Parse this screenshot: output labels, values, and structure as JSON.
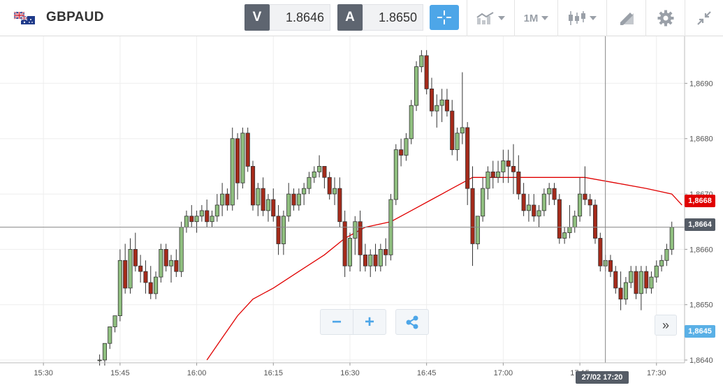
{
  "header": {
    "symbol": "GBPAUD",
    "flag_icon": "gb-au-flag-icon",
    "sell_label": "V",
    "sell_price": "1.8646",
    "buy_label": "A",
    "buy_price": "1.8650",
    "timeframe": "1M",
    "accent_color": "#4da6e8"
  },
  "toolbar_icons": [
    "crosshair-icon",
    "indicators-icon",
    "candlestick-type-icon",
    "drawing-tools-icon",
    "gear-icon",
    "compress-icon"
  ],
  "price_tags": {
    "ma_value": "1,8668",
    "ma_color": "#e00000",
    "crosshair_price": "1,8664",
    "bid_price": "1,8645",
    "bid_color": "#5ab0e6"
  },
  "crosshair_time": "27/02 17:20",
  "controls": {
    "zoom_out": "−",
    "zoom_in": "+",
    "scroll_right": "»"
  },
  "chart_data": {
    "type": "candlestick",
    "y_ticks": [
      "1,8640",
      "1,8650",
      "1,8660",
      "1,8670",
      "1,8680",
      "1,8690"
    ],
    "y_tick_values": [
      1.864,
      1.865,
      1.866,
      1.867,
      1.868,
      1.869
    ],
    "ylim": [
      1.86395,
      1.86985
    ],
    "x_ticks": [
      "15:30",
      "15:45",
      "16:00",
      "16:15",
      "16:30",
      "16:45",
      "17:00",
      "17:15",
      "17:30"
    ],
    "x_tick_minutes": [
      930,
      945,
      960,
      975,
      990,
      1005,
      1020,
      1035,
      1050
    ],
    "xlim_minutes": [
      921.5,
      1055.5
    ],
    "grid": true,
    "up_color": "#8fbf7f",
    "down_color": "#a52a1a",
    "candles": [
      [
        941,
        1.864,
        1.8641,
        1.8639,
        1.864
      ],
      [
        942,
        1.864,
        1.8643,
        1.8639,
        1.8643
      ],
      [
        943,
        1.8643,
        1.8646,
        1.8642,
        1.8646
      ],
      [
        944,
        1.8646,
        1.8648,
        1.8645,
        1.8648
      ],
      [
        945,
        1.8648,
        1.866,
        1.8647,
        1.8658
      ],
      [
        946,
        1.8658,
        1.8661,
        1.8652,
        1.8653
      ],
      [
        947,
        1.8653,
        1.8662,
        1.8652,
        1.866
      ],
      [
        948,
        1.866,
        1.8663,
        1.8656,
        1.8657
      ],
      [
        949,
        1.8657,
        1.8659,
        1.8654,
        1.8656
      ],
      [
        950,
        1.8656,
        1.8658,
        1.8652,
        1.8654
      ],
      [
        951,
        1.8654,
        1.8657,
        1.8651,
        1.8652
      ],
      [
        952,
        1.8652,
        1.8656,
        1.8651,
        1.8655
      ],
      [
        953,
        1.8655,
        1.8661,
        1.8654,
        1.866
      ],
      [
        954,
        1.866,
        1.8661,
        1.8656,
        1.8657
      ],
      [
        955,
        1.8657,
        1.8659,
        1.8654,
        1.8658
      ],
      [
        956,
        1.8658,
        1.866,
        1.8655,
        1.8656
      ],
      [
        957,
        1.8656,
        1.8665,
        1.8655,
        1.8664
      ],
      [
        958,
        1.8664,
        1.8667,
        1.8663,
        1.8666
      ],
      [
        959,
        1.8666,
        1.8668,
        1.8664,
        1.8665
      ],
      [
        960,
        1.8665,
        1.8667,
        1.8663,
        1.8666
      ],
      [
        961,
        1.8666,
        1.8668,
        1.8665,
        1.8667
      ],
      [
        962,
        1.8667,
        1.8669,
        1.8664,
        1.8665
      ],
      [
        963,
        1.8665,
        1.8667,
        1.8664,
        1.8666
      ],
      [
        964,
        1.8666,
        1.867,
        1.8665,
        1.8668
      ],
      [
        965,
        1.8668,
        1.8672,
        1.8666,
        1.867
      ],
      [
        966,
        1.867,
        1.8671,
        1.8667,
        1.8668
      ],
      [
        967,
        1.8668,
        1.8682,
        1.8667,
        1.868
      ],
      [
        968,
        1.868,
        1.8681,
        1.8669,
        1.8672
      ],
      [
        969,
        1.8672,
        1.8682,
        1.8671,
        1.8681
      ],
      [
        970,
        1.8681,
        1.8682,
        1.8674,
        1.8675
      ],
      [
        971,
        1.8675,
        1.8676,
        1.8667,
        1.8668
      ],
      [
        972,
        1.8668,
        1.8672,
        1.8666,
        1.8671
      ],
      [
        973,
        1.8671,
        1.8673,
        1.8666,
        1.8667
      ],
      [
        974,
        1.8667,
        1.867,
        1.8665,
        1.8669
      ],
      [
        975,
        1.8669,
        1.8671,
        1.8665,
        1.8666
      ],
      [
        976,
        1.8666,
        1.8668,
        1.8659,
        1.8661
      ],
      [
        977,
        1.8661,
        1.8667,
        1.8659,
        1.8666
      ],
      [
        978,
        1.8666,
        1.8672,
        1.8665,
        1.867
      ],
      [
        979,
        1.867,
        1.8671,
        1.8667,
        1.8668
      ],
      [
        980,
        1.8668,
        1.8671,
        1.8667,
        1.867
      ],
      [
        981,
        1.867,
        1.8672,
        1.8668,
        1.8671
      ],
      [
        982,
        1.8671,
        1.8674,
        1.867,
        1.8673
      ],
      [
        983,
        1.8673,
        1.8675,
        1.8672,
        1.8674
      ],
      [
        984,
        1.8674,
        1.8677,
        1.8673,
        1.8675
      ],
      [
        985,
        1.8675,
        1.8675,
        1.8671,
        1.8673
      ],
      [
        986,
        1.8673,
        1.8674,
        1.8669,
        1.867
      ],
      [
        987,
        1.867,
        1.8673,
        1.8668,
        1.8671
      ],
      [
        988,
        1.8671,
        1.8673,
        1.8664,
        1.8665
      ],
      [
        989,
        1.8665,
        1.8667,
        1.8655,
        1.8657
      ],
      [
        990,
        1.8657,
        1.8663,
        1.8656,
        1.8662
      ],
      [
        991,
        1.8662,
        1.8666,
        1.8659,
        1.8665
      ],
      [
        992,
        1.8665,
        1.8667,
        1.8656,
        1.8659
      ],
      [
        993,
        1.8659,
        1.8661,
        1.8656,
        1.8657
      ],
      [
        994,
        1.8657,
        1.866,
        1.8655,
        1.8659
      ],
      [
        995,
        1.8659,
        1.8661,
        1.8656,
        1.8657
      ],
      [
        996,
        1.8657,
        1.8661,
        1.8656,
        1.866
      ],
      [
        997,
        1.866,
        1.8662,
        1.8657,
        1.8659
      ],
      [
        998,
        1.8659,
        1.867,
        1.8658,
        1.8669
      ],
      [
        999,
        1.8669,
        1.8679,
        1.8668,
        1.8678
      ],
      [
        1000,
        1.8678,
        1.868,
        1.8675,
        1.8677
      ],
      [
        1001,
        1.8677,
        1.8681,
        1.8676,
        1.868
      ],
      [
        1002,
        1.868,
        1.8687,
        1.8679,
        1.8686
      ],
      [
        1003,
        1.8686,
        1.8694,
        1.8685,
        1.8693
      ],
      [
        1004,
        1.8693,
        1.8696,
        1.8692,
        1.8695
      ],
      [
        1005,
        1.8695,
        1.8696,
        1.8688,
        1.8689
      ],
      [
        1006,
        1.8689,
        1.8691,
        1.8684,
        1.8685
      ],
      [
        1007,
        1.8685,
        1.8688,
        1.8682,
        1.8686
      ],
      [
        1008,
        1.8686,
        1.8689,
        1.8683,
        1.8687
      ],
      [
        1009,
        1.8687,
        1.8689,
        1.8684,
        1.8685
      ],
      [
        1010,
        1.8685,
        1.8687,
        1.8677,
        1.8678
      ],
      [
        1011,
        1.8678,
        1.8682,
        1.8676,
        1.8681
      ],
      [
        1012,
        1.8681,
        1.8692,
        1.8679,
        1.8682
      ],
      [
        1013,
        1.8682,
        1.8683,
        1.8668,
        1.8671
      ],
      [
        1014,
        1.8671,
        1.8675,
        1.8657,
        1.8661
      ],
      [
        1015,
        1.8661,
        1.8666,
        1.866,
        1.8666
      ],
      [
        1016,
        1.8666,
        1.8673,
        1.8665,
        1.8671
      ],
      [
        1017,
        1.8671,
        1.8675,
        1.8669,
        1.8674
      ],
      [
        1018,
        1.8674,
        1.8676,
        1.8671,
        1.8673
      ],
      [
        1019,
        1.8673,
        1.8676,
        1.8672,
        1.8674
      ],
      [
        1020,
        1.8674,
        1.8678,
        1.8672,
        1.8676
      ],
      [
        1021,
        1.8676,
        1.8678,
        1.8672,
        1.8675
      ],
      [
        1022,
        1.8675,
        1.8679,
        1.867,
        1.8674
      ],
      [
        1023,
        1.8674,
        1.8677,
        1.8669,
        1.867
      ],
      [
        1024,
        1.867,
        1.8672,
        1.8666,
        1.8667
      ],
      [
        1025,
        1.8667,
        1.867,
        1.8665,
        1.8668
      ],
      [
        1026,
        1.8668,
        1.867,
        1.8665,
        1.8666
      ],
      [
        1027,
        1.8666,
        1.8668,
        1.8664,
        1.8667
      ],
      [
        1028,
        1.8667,
        1.8671,
        1.8666,
        1.867
      ],
      [
        1029,
        1.867,
        1.8672,
        1.8668,
        1.8671
      ],
      [
        1030,
        1.8671,
        1.8672,
        1.8668,
        1.8669
      ],
      [
        1031,
        1.8669,
        1.867,
        1.8661,
        1.8662
      ],
      [
        1032,
        1.8662,
        1.8664,
        1.8661,
        1.8663
      ],
      [
        1033,
        1.8663,
        1.8668,
        1.8662,
        1.8664
      ],
      [
        1034,
        1.8664,
        1.8667,
        1.8663,
        1.8666
      ],
      [
        1035,
        1.8666,
        1.8673,
        1.8665,
        1.867
      ],
      [
        1036,
        1.867,
        1.8675,
        1.8668,
        1.8669
      ],
      [
        1037,
        1.8669,
        1.867,
        1.8666,
        1.8668
      ],
      [
        1038,
        1.8668,
        1.8669,
        1.8661,
        1.8662
      ],
      [
        1039,
        1.8662,
        1.8663,
        1.8656,
        1.8657
      ],
      [
        1040,
        1.8657,
        1.8659,
        1.8656,
        1.8658
      ],
      [
        1041,
        1.8658,
        1.8659,
        1.8655,
        1.8656
      ],
      [
        1042,
        1.8656,
        1.8657,
        1.8652,
        1.8653
      ],
      [
        1043,
        1.8653,
        1.8656,
        1.8649,
        1.8651
      ],
      [
        1044,
        1.8651,
        1.8655,
        1.865,
        1.8654
      ],
      [
        1045,
        1.8654,
        1.8657,
        1.8653,
        1.8656
      ],
      [
        1046,
        1.8656,
        1.8657,
        1.8651,
        1.8652
      ],
      [
        1047,
        1.8652,
        1.8657,
        1.8649,
        1.8656
      ],
      [
        1048,
        1.8656,
        1.8657,
        1.8652,
        1.8653
      ],
      [
        1049,
        1.8653,
        1.8656,
        1.8652,
        1.8655
      ],
      [
        1050,
        1.8655,
        1.8658,
        1.8654,
        1.8657
      ],
      [
        1051,
        1.8657,
        1.8659,
        1.8656,
        1.8658
      ],
      [
        1052,
        1.8658,
        1.8661,
        1.8657,
        1.866
      ],
      [
        1053,
        1.866,
        1.8665,
        1.8659,
        1.8664
      ]
    ],
    "moving_average": [
      [
        962,
        1.864
      ],
      [
        965,
        1.8644
      ],
      [
        968,
        1.8648
      ],
      [
        971,
        1.8651
      ],
      [
        975,
        1.8653
      ],
      [
        980,
        1.8656
      ],
      [
        985,
        1.8659
      ],
      [
        989,
        1.8662
      ],
      [
        993,
        1.8664
      ],
      [
        998,
        1.8665
      ],
      [
        1002,
        1.8667
      ],
      [
        1006,
        1.8669
      ],
      [
        1010,
        1.8671
      ],
      [
        1014,
        1.8673
      ],
      [
        1018,
        1.8673
      ],
      [
        1024,
        1.8673
      ],
      [
        1030,
        1.8673
      ],
      [
        1036,
        1.8673
      ],
      [
        1042,
        1.8672
      ],
      [
        1048,
        1.8671
      ],
      [
        1053,
        1.867
      ],
      [
        1055,
        1.8668
      ]
    ],
    "ma_color": "#e00000",
    "crosshair": {
      "x_minute": 1040,
      "y_value": 1.8664
    }
  }
}
